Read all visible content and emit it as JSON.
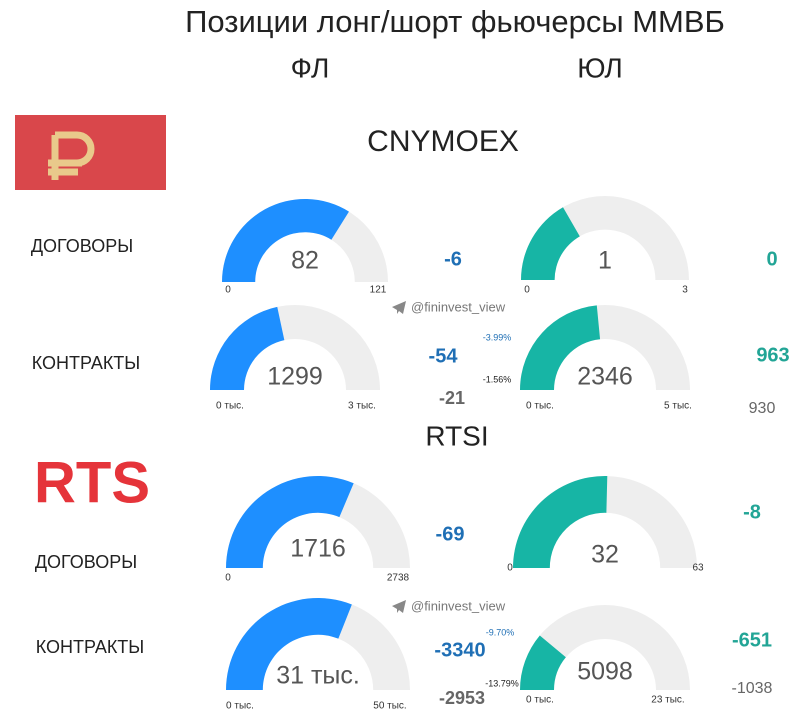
{
  "title": "Позиции лонг/шорт фьючерсы ММВБ",
  "columns": [
    "ФЛ",
    "ЮЛ"
  ],
  "sections": [
    {
      "name": "CNYMOEX"
    },
    {
      "name": "RTSI",
      "logo": "RTS"
    }
  ],
  "row_labels": [
    "ДОГОВОРЫ",
    "КОНТРАКТЫ",
    "ДОГОВОРЫ",
    "КОНТРАКТЫ"
  ],
  "watermark": "@fininvest_view",
  "chart_data": [
    {
      "type": "gauge",
      "value": 82,
      "color": "#1e8fff",
      "ylim": [
        0,
        121
      ],
      "yticks": [
        0,
        121
      ],
      "annotations": [
        {
          "text": "-6",
          "color": "#1f6fb5"
        }
      ]
    },
    {
      "type": "gauge",
      "value": 1,
      "color": "#17b5a5",
      "ylim": [
        0,
        3
      ],
      "yticks": [
        0,
        3
      ],
      "annotations": [
        {
          "text": "0",
          "color": "#22a596"
        }
      ]
    },
    {
      "type": "gauge",
      "value": 1299,
      "color": "#1e8fff",
      "ylim": [
        0,
        3000
      ],
      "yticks": [
        {
          "value": 0,
          "label": "0 тыс."
        },
        {
          "value": 3000,
          "label": "3 тыс."
        }
      ],
      "annotations": [
        {
          "text": "-54",
          "color": "#1f6fb5"
        },
        {
          "text": "-21",
          "color": "#666666"
        },
        {
          "text": "-3.99%",
          "color": "#1f6fb5"
        },
        {
          "text": "-1.56%",
          "color": "#222222"
        }
      ]
    },
    {
      "type": "gauge",
      "value": 2346,
      "color": "#17b5a5",
      "ylim": [
        0,
        5000
      ],
      "yticks": [
        {
          "value": 0,
          "label": "0 тыс."
        },
        {
          "value": 5000,
          "label": "5 тыс."
        }
      ],
      "annotations": [
        {
          "text": "963",
          "color": "#22a596"
        },
        {
          "text": "930",
          "color": "#666666"
        }
      ]
    },
    {
      "type": "gauge",
      "value": 1716,
      "color": "#1e8fff",
      "ylim": [
        0,
        2738
      ],
      "yticks": [
        0,
        2738
      ],
      "annotations": [
        {
          "text": "-69",
          "color": "#1f6fb5"
        }
      ]
    },
    {
      "type": "gauge",
      "value": 32,
      "color": "#17b5a5",
      "ylim": [
        0,
        63
      ],
      "yticks": [
        0,
        63
      ],
      "annotations": [
        {
          "text": "-8",
          "color": "#22a596"
        }
      ]
    },
    {
      "type": "gauge",
      "value": 31000,
      "value_label": "31 тыс.",
      "color": "#1e8fff",
      "ylim": [
        0,
        50000
      ],
      "yticks": [
        {
          "value": 0,
          "label": "0 тыс."
        },
        {
          "value": 50000,
          "label": "50 тыс."
        }
      ],
      "annotations": [
        {
          "text": "-3340",
          "color": "#1f6fb5"
        },
        {
          "text": "-2953",
          "color": "#666666"
        },
        {
          "text": "-9.70%",
          "color": "#1f6fb5"
        },
        {
          "text": "-13.79%",
          "color": "#222222"
        }
      ]
    },
    {
      "type": "gauge",
      "value": 5098,
      "color": "#17b5a5",
      "ylim": [
        0,
        23000
      ],
      "yticks": [
        {
          "value": 0,
          "label": "0 тыс."
        },
        {
          "value": 23000,
          "label": "23 тыс."
        }
      ],
      "annotations": [
        {
          "text": "-651",
          "color": "#22a596"
        },
        {
          "text": "-1038",
          "color": "#666666"
        }
      ]
    }
  ]
}
